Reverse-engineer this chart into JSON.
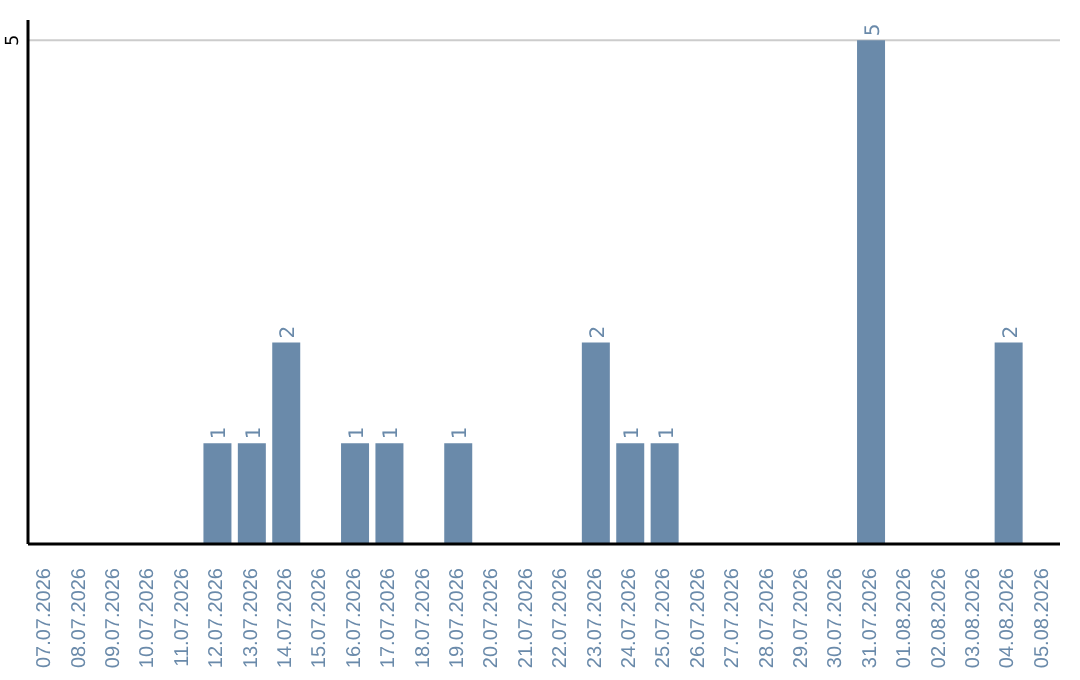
{
  "chart_data": {
    "type": "bar",
    "categories": [
      "07.07.2026",
      "08.07.2026",
      "09.07.2026",
      "10.07.2026",
      "11.07.2026",
      "12.07.2026",
      "13.07.2026",
      "14.07.2026",
      "15.07.2026",
      "16.07.2026",
      "17.07.2026",
      "18.07.2026",
      "19.07.2026",
      "20.07.2026",
      "21.07.2026",
      "22.07.2026",
      "23.07.2026",
      "24.07.2026",
      "25.07.2026",
      "26.07.2026",
      "27.07.2026",
      "28.07.2026",
      "29.07.2026",
      "30.07.2026",
      "31.07.2026",
      "01.08.2026",
      "02.08.2026",
      "03.08.2026",
      "04.08.2026",
      "05.08.2026"
    ],
    "values": [
      null,
      null,
      null,
      null,
      null,
      1,
      1,
      2,
      null,
      1,
      1,
      null,
      1,
      null,
      null,
      null,
      2,
      1,
      1,
      null,
      null,
      null,
      null,
      null,
      5,
      null,
      null,
      null,
      2,
      null
    ],
    "color": "#6a8aaa",
    "ylim": [
      0,
      5.2
    ],
    "yticks": [
      5
    ],
    "grid": "y",
    "data_labels": true
  }
}
